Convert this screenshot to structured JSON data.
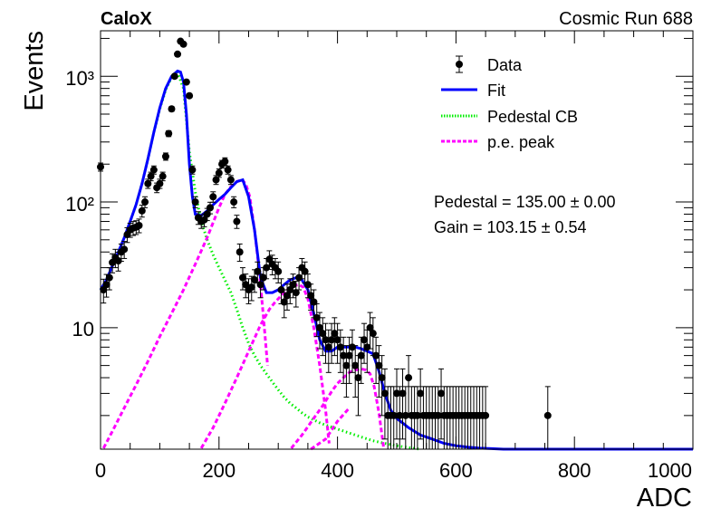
{
  "header": {
    "left": "CaloX",
    "right": "Cosmic Run 688"
  },
  "fit_results": {
    "pedestal": "Pedestal = 135.00 ± 0.00",
    "gain": "Gain = 103.15 ± 0.54"
  },
  "chart_data": {
    "type": "scatter",
    "title": "",
    "xlabel": "ADC",
    "ylabel": "Events",
    "xlim": [
      0,
      1000
    ],
    "ylim": [
      1.08,
      2300
    ],
    "yscale": "log",
    "x_ticks": [
      0,
      200,
      400,
      600,
      800,
      1000
    ],
    "x_tick_labels": [
      "0",
      "200",
      "400",
      "600",
      "800",
      "1000"
    ],
    "y_ticks": [
      10,
      100,
      1000
    ],
    "y_tick_labels": [
      "10",
      "10²",
      "10³"
    ],
    "grid": false,
    "legend_position": "top-right",
    "legend": [
      "Data",
      "Fit",
      "Pedestal CB",
      "p.e. peak"
    ],
    "colors": {
      "data": "#000000",
      "fit": "#0000ff",
      "pedestal": "#00ee00",
      "pe_peak": "#ff00ff"
    },
    "series": [
      {
        "name": "Data",
        "kind": "points_with_errors",
        "x": [
          0,
          5,
          10,
          15,
          20,
          25,
          30,
          35,
          40,
          45,
          50,
          55,
          60,
          65,
          70,
          75,
          80,
          85,
          90,
          95,
          100,
          105,
          110,
          115,
          120,
          125,
          130,
          135,
          140,
          145,
          150,
          155,
          160,
          165,
          170,
          175,
          180,
          185,
          190,
          195,
          200,
          205,
          210,
          215,
          220,
          225,
          230,
          235,
          240,
          245,
          250,
          255,
          260,
          265,
          270,
          275,
          280,
          285,
          290,
          295,
          300,
          305,
          310,
          315,
          320,
          325,
          330,
          335,
          340,
          345,
          350,
          355,
          360,
          365,
          370,
          375,
          380,
          385,
          390,
          395,
          400,
          405,
          410,
          415,
          420,
          425,
          430,
          435,
          440,
          445,
          450,
          455,
          460,
          465,
          470,
          475,
          480,
          485,
          490,
          495,
          500,
          505,
          510,
          515,
          520,
          525,
          530,
          535,
          540,
          545,
          550,
          555,
          560,
          565,
          570,
          575,
          580,
          585,
          590,
          595,
          600,
          605,
          610,
          615,
          620,
          625,
          630,
          635,
          640,
          645,
          650,
          755
        ],
        "y": [
          190,
          20,
          22,
          25,
          33,
          36,
          34,
          40,
          42,
          55,
          60,
          62,
          63,
          65,
          85,
          100,
          140,
          160,
          180,
          130,
          140,
          160,
          230,
          350,
          550,
          1000,
          1500,
          1900,
          1800,
          900,
          700,
          180,
          100,
          75,
          70,
          72,
          80,
          90,
          110,
          150,
          170,
          200,
          210,
          180,
          150,
          100,
          70,
          40,
          25,
          22,
          20,
          21,
          24,
          28,
          22,
          25,
          30,
          35,
          32,
          30,
          28,
          20,
          16,
          18,
          20,
          22,
          19,
          25,
          30,
          28,
          22,
          18,
          16,
          12,
          10,
          9,
          8,
          7,
          8,
          9,
          8,
          7,
          6,
          5,
          6,
          7,
          5,
          4,
          6,
          8,
          7,
          10,
          9,
          6,
          5,
          4,
          3,
          2,
          2,
          2,
          3,
          2,
          3,
          2,
          4,
          2,
          2,
          2,
          3,
          2,
          2,
          2,
          2,
          2,
          2,
          3,
          2,
          2,
          2,
          2,
          2,
          2,
          2,
          2,
          2,
          2,
          2,
          2,
          2,
          2,
          2,
          2
        ],
        "yerr_lo": [
          14,
          4.3,
          4.5,
          5,
          5.7,
          6,
          5.8,
          6.3,
          6.5,
          7.4,
          7.7,
          7.9,
          7.9,
          8.1,
          9.2,
          10,
          11.8,
          12.6,
          13.4,
          11.4,
          11.8,
          12.6,
          15.2,
          18.7,
          23.5,
          31.6,
          38.7,
          43.6,
          42.4,
          30,
          26.5,
          13.4,
          10,
          8.7,
          8.4,
          8.5,
          8.9,
          9.5,
          10.5,
          12.2,
          13,
          14.1,
          14.5,
          13.4,
          12.2,
          10,
          8.4,
          6.3,
          5,
          4.7,
          4.5,
          4.6,
          4.9,
          5.3,
          4.7,
          5,
          5.5,
          5.9,
          5.7,
          5.5,
          5.3,
          4.5,
          4,
          4.2,
          4.5,
          4.7,
          4.4,
          5,
          5.5,
          5.3,
          4.7,
          4.2,
          4,
          3.5,
          3.2,
          3,
          2.8,
          2.6,
          2.8,
          3,
          2.8,
          2.6,
          2.4,
          2.2,
          2.4,
          2.6,
          2.2,
          2,
          2.4,
          2.8,
          2.6,
          3.2,
          3,
          2.4,
          2.2,
          2,
          1.7,
          1.4,
          1.4,
          1.4,
          1.7,
          1.4,
          1.7,
          1.4,
          2,
          1.4,
          1.4,
          1.4,
          1.7,
          1.4,
          1.4,
          1.4,
          1.4,
          1.4,
          1.4,
          1.7,
          1.4,
          1.4,
          1.4,
          1.4,
          1.4,
          1.4,
          1.4,
          1.4,
          1.4,
          1.4,
          1.4,
          1.4,
          1.4,
          1.4,
          1.4,
          1.4
        ],
        "yerr_hi": [
          14,
          4.3,
          4.5,
          5,
          5.7,
          6,
          5.8,
          6.3,
          6.5,
          7.4,
          7.7,
          7.9,
          7.9,
          8.1,
          9.2,
          10,
          11.8,
          12.6,
          13.4,
          11.4,
          11.8,
          12.6,
          15.2,
          18.7,
          23.5,
          31.6,
          38.7,
          43.6,
          42.4,
          30,
          26.5,
          13.4,
          10,
          8.7,
          8.4,
          8.5,
          8.9,
          9.5,
          10.5,
          12.2,
          13,
          14.1,
          14.5,
          13.4,
          12.2,
          10,
          8.4,
          6.3,
          5,
          4.7,
          4.5,
          4.6,
          4.9,
          5.3,
          4.7,
          5,
          5.5,
          5.9,
          5.7,
          5.5,
          5.3,
          4.5,
          4,
          4.2,
          4.5,
          4.7,
          4.4,
          5,
          5.5,
          5.3,
          4.7,
          4.2,
          4,
          3.5,
          3.2,
          3,
          2.8,
          2.6,
          2.8,
          3,
          2.8,
          2.6,
          2.4,
          2.2,
          2.4,
          2.6,
          2.2,
          2,
          2.4,
          2.8,
          2.6,
          3.2,
          3,
          2.4,
          2.2,
          2,
          1.7,
          1.4,
          1.4,
          1.4,
          1.7,
          1.4,
          1.7,
          1.4,
          2,
          1.4,
          1.4,
          1.4,
          1.7,
          1.4,
          1.4,
          1.4,
          1.4,
          1.4,
          1.4,
          1.7,
          1.4,
          1.4,
          1.4,
          1.4,
          1.4,
          1.4,
          1.4,
          1.4,
          1.4,
          1.4,
          1.4,
          1.4,
          1.4,
          1.4,
          1.4,
          1.4
        ]
      },
      {
        "name": "Fit",
        "kind": "line",
        "x": [
          0,
          10,
          20,
          30,
          40,
          50,
          60,
          70,
          80,
          90,
          100,
          110,
          120,
          130,
          135,
          140,
          145,
          150,
          155,
          160,
          170,
          180,
          190,
          200,
          210,
          220,
          230,
          240,
          250,
          260,
          270,
          280,
          290,
          300,
          310,
          320,
          330,
          340,
          350,
          360,
          370,
          380,
          390,
          400,
          410,
          420,
          430,
          440,
          450,
          460,
          470,
          480,
          490,
          500,
          520,
          540,
          560,
          580,
          600,
          620,
          640,
          660,
          680,
          700,
          750,
          800,
          850,
          900,
          950,
          1000
        ],
        "y": [
          20,
          24,
          31,
          40,
          52,
          70,
          95,
          140,
          220,
          360,
          560,
          800,
          1000,
          1100,
          1080,
          900,
          500,
          200,
          110,
          80,
          78,
          85,
          95,
          105,
          115,
          130,
          145,
          150,
          110,
          60,
          25,
          19,
          19,
          20,
          22,
          24,
          25,
          24,
          20,
          13,
          8,
          6.5,
          6.5,
          7,
          7,
          7,
          7,
          6.8,
          6.5,
          6.2,
          4.5,
          3,
          2.2,
          1.9,
          1.6,
          1.4,
          1.3,
          1.2,
          1.15,
          1.12,
          1.1,
          1.09,
          1.08,
          1.08,
          1.08,
          1.08,
          1.08,
          1.08,
          1.08,
          1.08
        ]
      },
      {
        "name": "Pedestal CB",
        "kind": "line",
        "x": [
          0,
          10,
          20,
          30,
          40,
          50,
          60,
          70,
          80,
          90,
          100,
          110,
          120,
          130,
          140,
          150,
          160,
          170,
          180,
          190,
          200,
          210,
          220,
          230,
          240,
          250,
          260,
          270,
          280,
          290,
          300,
          310,
          320,
          330,
          340,
          350,
          360,
          370,
          380,
          390,
          400,
          420,
          440,
          460,
          480,
          500,
          520,
          540
        ],
        "y": [
          20,
          24,
          31,
          40,
          52,
          70,
          95,
          140,
          220,
          360,
          550,
          780,
          980,
          1080,
          800,
          250,
          120,
          70,
          50,
          38,
          30,
          24,
          19,
          14,
          10,
          7.5,
          6,
          5,
          4.3,
          3.7,
          3.2,
          2.8,
          2.5,
          2.3,
          2.1,
          1.95,
          1.85,
          1.75,
          1.68,
          1.62,
          1.56,
          1.45,
          1.35,
          1.26,
          1.2,
          1.15,
          1.11,
          1.08
        ]
      },
      {
        "name": "p.e. peak",
        "kind": "line",
        "segments": [
          {
            "x": [
              5,
              20,
              40,
              60,
              80,
              100,
              120,
              140,
              160,
              180,
              200,
              210,
              220,
              230,
              238,
              245,
              252,
              260,
              268,
              275,
              282
            ],
            "y": [
              1.1,
              1.5,
              2.3,
              3.5,
              5.4,
              8.5,
              13,
              20,
              32,
              52,
              90,
              115,
              132,
              145,
              150,
              140,
              110,
              60,
              28,
              12,
              5
            ]
          },
          {
            "x": [
              170,
              190,
              210,
              230,
              250,
              270,
              285,
              295,
              305,
              315,
              325,
              335,
              342,
              350,
              360,
              370,
              380,
              386
            ],
            "y": [
              1.1,
              1.6,
              2.5,
              4,
              6.5,
              10.5,
              14,
              16,
              18,
              20,
              21.5,
              22,
              21,
              17,
              10,
              5,
              2.2,
              1.2
            ]
          },
          {
            "x": [
              322,
              340,
              360,
              375,
              390,
              400,
              410,
              420,
              430,
              440,
              448,
              455,
              462,
              470,
              478
            ],
            "y": [
              1.1,
              1.4,
              1.9,
              2.4,
              3.1,
              3.6,
              4,
              4.4,
              4.6,
              4.7,
              4.6,
              4.3,
              3.4,
              2.1,
              1.1
            ]
          },
          {
            "x": [
              355,
              380,
              400,
              420
            ],
            "y": [
              1.08,
              1.3,
              1.8,
              2.3
            ]
          }
        ]
      }
    ]
  }
}
